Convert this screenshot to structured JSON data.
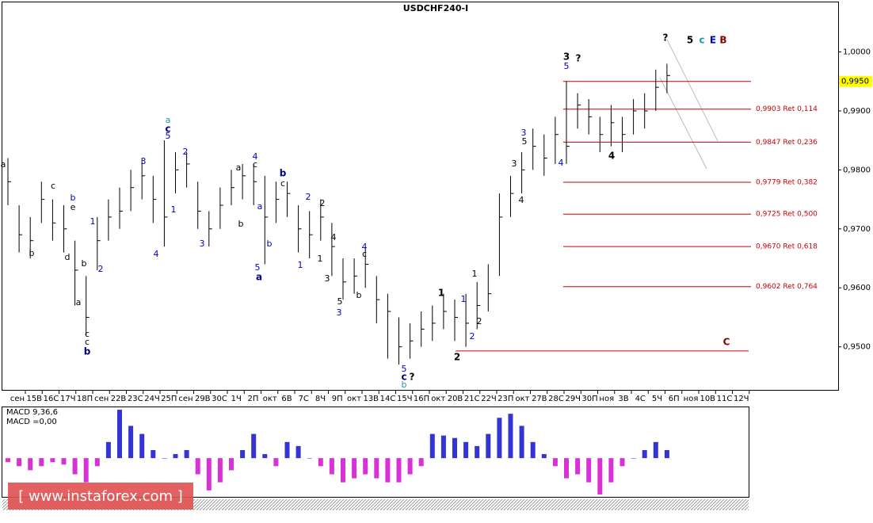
{
  "chart_data": {
    "type": "ohlc",
    "title": "USDCHF240-I",
    "ylim": [
      0.9427,
      1.0084
    ],
    "yticks": [
      {
        "value": 1.0,
        "label": "1,0000"
      },
      {
        "value": 0.99,
        "label": "0,9900"
      },
      {
        "value": 0.98,
        "label": "0,9800"
      },
      {
        "value": 0.97,
        "label": "0,9700"
      },
      {
        "value": 0.96,
        "label": "0,9600"
      },
      {
        "value": 0.95,
        "label": "0,9500"
      }
    ],
    "current_price": {
      "value": 0.995,
      "label": "0,9950"
    },
    "x_labels": [
      "сен",
      "15В",
      "16С",
      "17Ч",
      "18П",
      "сен",
      "22В",
      "23С",
      "24Ч",
      "25П",
      "сен",
      "29В",
      "30С",
      "1Ч",
      "2П",
      "окт",
      "6В",
      "7С",
      "8Ч",
      "9П",
      "окт",
      "13В",
      "14С",
      "15Ч",
      "16П",
      "окт",
      "20В",
      "21С",
      "22Ч",
      "23П",
      "окт",
      "27В",
      "28С",
      "29Ч",
      "30П",
      "ноя",
      "3В",
      "4С",
      "5Ч",
      "6П",
      "ноя",
      "10В",
      "11С",
      "12Ч"
    ],
    "close": [
      0.978,
      0.969,
      0.968,
      0.975,
      0.971,
      0.97,
      0.963,
      0.955,
      0.968,
      0.972,
      0.973,
      0.977,
      0.979,
      0.975,
      0.972,
      0.98,
      0.981,
      0.973,
      0.97,
      0.974,
      0.977,
      0.979,
      0.978,
      0.972,
      0.975,
      0.976,
      0.97,
      0.969,
      0.972,
      0.967,
      0.961,
      0.962,
      0.964,
      0.958,
      0.956,
      0.95,
      0.951,
      0.953,
      0.954,
      0.956,
      0.955,
      0.954,
      0.957,
      0.959,
      0.972,
      0.976,
      0.98,
      0.984,
      0.982,
      0.986,
      0.984,
      0.991,
      0.989,
      0.986,
      0.988,
      0.986,
      0.99,
      0.99,
      0.994,
      0.996
    ],
    "high": [
      0.982,
      0.974,
      0.972,
      0.978,
      0.975,
      0.974,
      0.968,
      0.962,
      0.972,
      0.975,
      0.977,
      0.98,
      0.982,
      0.979,
      0.985,
      0.983,
      0.983,
      0.978,
      0.973,
      0.977,
      0.98,
      0.981,
      0.981,
      0.979,
      0.978,
      0.978,
      0.974,
      0.973,
      0.975,
      0.971,
      0.965,
      0.965,
      0.967,
      0.962,
      0.959,
      0.955,
      0.954,
      0.956,
      0.957,
      0.959,
      0.958,
      0.959,
      0.961,
      0.964,
      0.976,
      0.979,
      0.983,
      0.987,
      0.986,
      0.989,
      0.995,
      0.993,
      0.992,
      0.989,
      0.991,
      0.989,
      0.992,
      0.993,
      0.997,
      0.998
    ],
    "low": [
      0.974,
      0.966,
      0.965,
      0.971,
      0.968,
      0.966,
      0.957,
      0.952,
      0.963,
      0.968,
      0.97,
      0.973,
      0.975,
      0.971,
      0.967,
      0.976,
      0.977,
      0.97,
      0.967,
      0.97,
      0.974,
      0.975,
      0.974,
      0.964,
      0.971,
      0.972,
      0.966,
      0.965,
      0.968,
      0.962,
      0.958,
      0.959,
      0.96,
      0.954,
      0.948,
      0.947,
      0.948,
      0.95,
      0.951,
      0.953,
      0.951,
      0.95,
      0.953,
      0.956,
      0.962,
      0.972,
      0.976,
      0.98,
      0.979,
      0.981,
      0.981,
      0.987,
      0.986,
      0.983,
      0.984,
      0.983,
      0.986,
      0.987,
      0.99,
      0.993
    ],
    "bar_color": "#000000",
    "levels": [
      {
        "value": 0.995
      },
      {
        "value": 0.9903,
        "label": "0,9903 Ret 0,114"
      },
      {
        "value": 0.9847,
        "label": "0,9847 Ret 0,236"
      },
      {
        "value": 0.9779,
        "label": "0,9779 Ret 0,382"
      },
      {
        "value": 0.9725,
        "label": "0,9725 Ret 0,500"
      },
      {
        "value": 0.967,
        "label": "0,9670 Ret 0,618"
      },
      {
        "value": 0.9602,
        "label": "0,9602 Ret 0,764"
      },
      {
        "value": 0.9493
      }
    ],
    "level_color": "#cc0000",
    "macd": {
      "name": "MACD 9,36,6",
      "value_label": "MACD =0,00",
      "ylim": [
        -0.0047,
        0.0063
      ],
      "pos_color": "#0000cc",
      "neg_color": "#cc00cc",
      "values": [
        -0.0005,
        -0.001,
        -0.0015,
        -0.001,
        -0.0005,
        -0.0008,
        -0.002,
        -0.003,
        -0.001,
        0.002,
        0.006,
        0.004,
        0.003,
        0.001,
        0.0,
        0.0005,
        0.001,
        -0.002,
        -0.004,
        -0.003,
        -0.0015,
        0.001,
        0.003,
        0.0005,
        -0.001,
        0.002,
        0.0015,
        0.0,
        -0.001,
        -0.002,
        -0.003,
        -0.0025,
        -0.002,
        -0.0025,
        -0.003,
        -0.003,
        -0.002,
        -0.001,
        0.003,
        0.0028,
        0.0025,
        0.002,
        0.0015,
        0.003,
        0.005,
        0.0055,
        0.004,
        0.002,
        0.0005,
        -0.001,
        -0.0025,
        -0.002,
        -0.003,
        -0.0045,
        -0.003,
        -0.001,
        0.0,
        0.001,
        0.002,
        0.001
      ]
    },
    "annotations": [
      "a",
      "b",
      "c",
      "b",
      "e",
      "d",
      "a",
      "b",
      "c",
      "c",
      "b",
      "1",
      "2",
      "3",
      "2",
      "a",
      "c",
      "5",
      "1",
      "4",
      "3",
      "a",
      "4",
      "c",
      "b",
      "a",
      "5",
      "a",
      "b",
      "b",
      "c",
      "2",
      "2",
      "1",
      "1",
      "4",
      "3",
      "5",
      "3",
      "4",
      "c",
      "b",
      "5",
      "c",
      "?",
      "b",
      "1",
      "2",
      "1",
      "2",
      "1",
      "2",
      "3",
      "4",
      "3",
      "5",
      "4",
      "3",
      "5",
      "?",
      "4",
      "?",
      "5",
      "c",
      "E",
      "B",
      "C"
    ],
    "watermark": "[ www.instaforex.com ]"
  }
}
